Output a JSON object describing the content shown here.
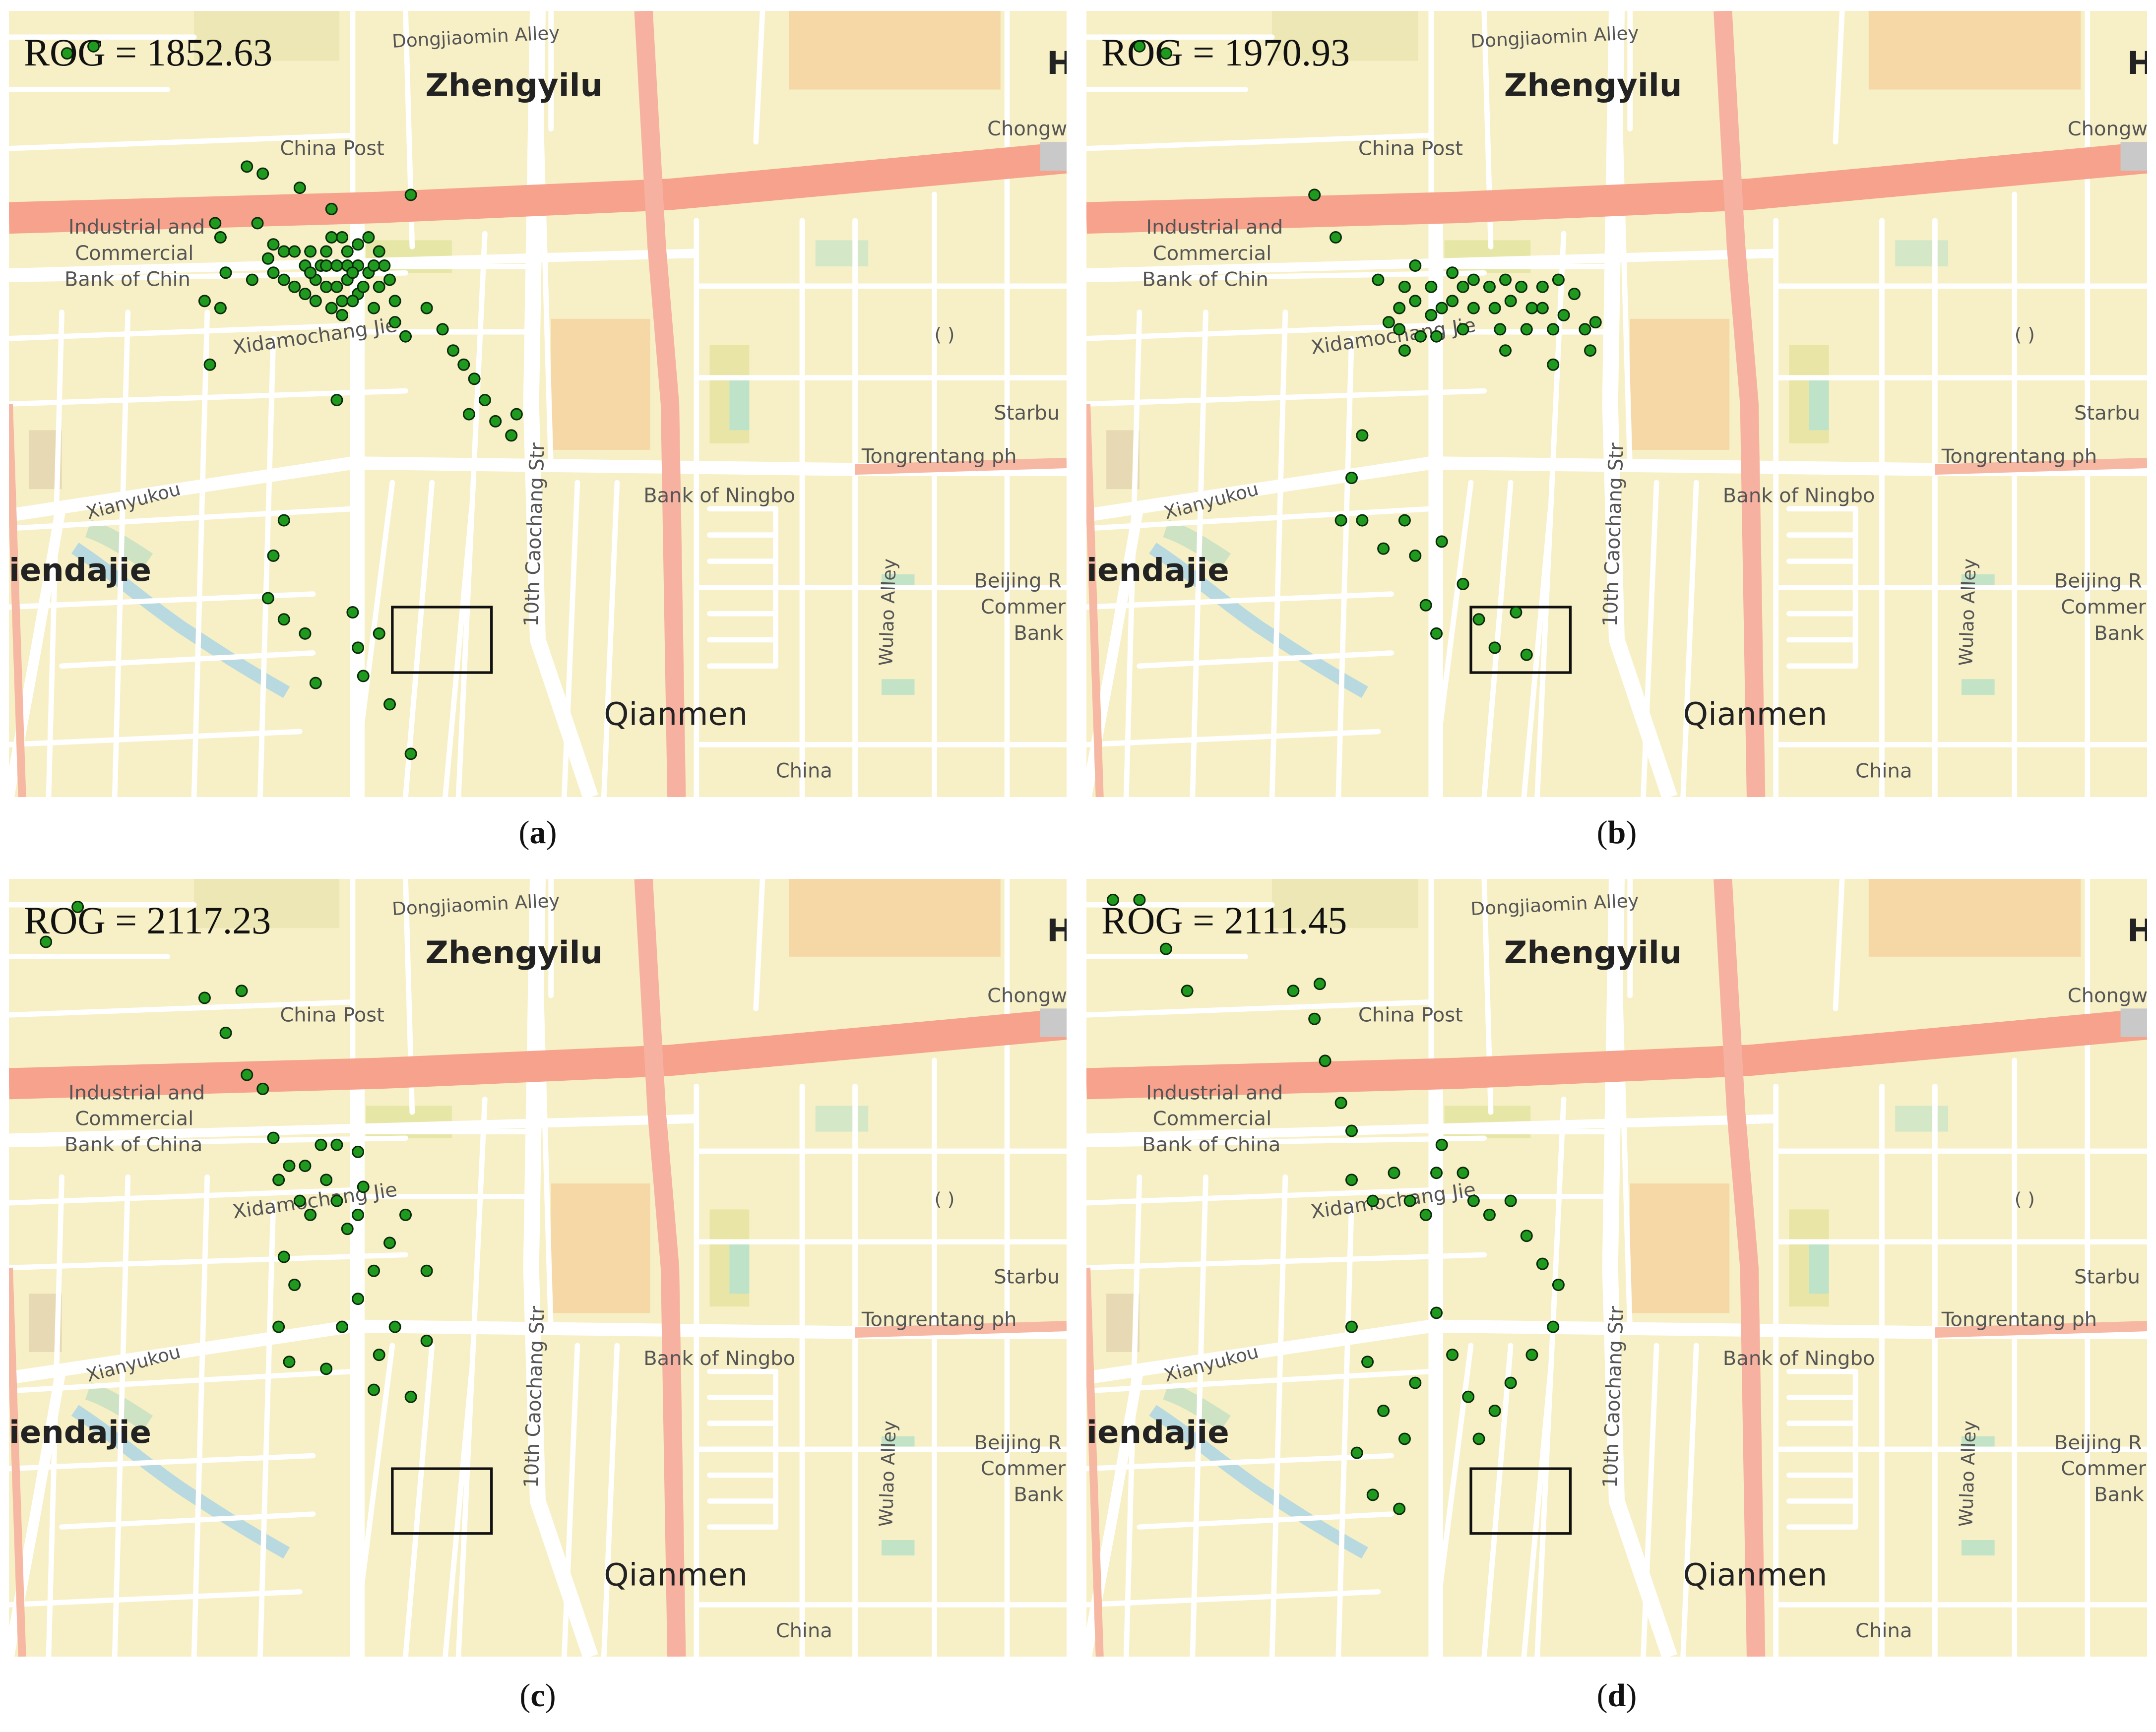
{
  "figure": {
    "panels": [
      {
        "caption_letter": "a",
        "rog": "ROG = 1852.63",
        "points": [
          [
            0.16,
            0.45
          ],
          [
            0.11,
            0.46
          ],
          [
            0.45,
            0.62
          ],
          [
            0.62,
            0.95
          ],
          [
            0.76,
            0.66
          ],
          [
            0.61,
            0.68
          ],
          [
            0.55,
            0.65
          ],
          [
            0.48,
            0.63
          ],
          [
            0.47,
            0.7
          ],
          [
            0.46,
            0.78
          ],
          [
            0.39,
            0.7
          ],
          [
            0.4,
            0.72
          ],
          [
            0.41,
            0.77
          ],
          [
            0.4,
            0.82
          ],
          [
            0.37,
            0.81
          ],
          [
            0.38,
            0.9
          ],
          [
            0.56,
            0.76
          ],
          [
            0.58,
            0.78
          ],
          [
            0.6,
            0.79
          ],
          [
            0.59,
            0.76
          ],
          [
            0.57,
            0.74
          ],
          [
            0.57,
            0.77
          ],
          [
            0.6,
            0.76
          ],
          [
            0.62,
            0.79
          ],
          [
            0.63,
            0.81
          ],
          [
            0.64,
            0.78
          ],
          [
            0.66,
            0.8
          ],
          [
            0.72,
            0.78
          ],
          [
            0.7,
            0.79
          ],
          [
            0.66,
            0.76
          ],
          [
            0.68,
            0.77
          ],
          [
            0.73,
            0.81
          ],
          [
            0.71,
            0.76
          ],
          [
            0.64,
            0.76
          ],
          [
            0.65,
            0.77
          ],
          [
            0.67,
            0.79
          ],
          [
            0.69,
            0.76
          ],
          [
            0.62,
            0.76
          ],
          [
            0.6,
            0.74
          ],
          [
            0.66,
            0.73
          ],
          [
            0.68,
            0.72
          ],
          [
            0.7,
            0.74
          ],
          [
            0.63,
            0.72
          ],
          [
            0.61,
            0.72
          ],
          [
            0.64,
            0.74
          ],
          [
            0.54,
            0.79
          ],
          [
            0.52,
            0.78
          ],
          [
            0.5,
            0.77
          ],
          [
            0.49,
            0.75
          ],
          [
            0.5,
            0.73
          ],
          [
            0.52,
            0.74
          ],
          [
            0.54,
            0.74
          ],
          [
            0.56,
            0.8
          ],
          [
            0.58,
            0.81
          ],
          [
            0.61,
            0.82
          ],
          [
            0.63,
            0.83
          ],
          [
            0.65,
            0.81
          ],
          [
            0.69,
            0.82
          ],
          [
            0.73,
            0.84
          ],
          [
            0.75,
            0.86
          ],
          [
            0.79,
            0.82
          ],
          [
            0.82,
            0.85
          ],
          [
            0.84,
            0.88
          ],
          [
            0.88,
            0.92
          ],
          [
            0.9,
            0.95
          ],
          [
            0.87,
            0.97
          ],
          [
            0.86,
            0.9
          ],
          [
            0.92,
            0.98
          ],
          [
            0.95,
            1.0
          ],
          [
            0.96,
            0.97
          ],
          [
            0.52,
            1.12
          ],
          [
            0.5,
            1.17
          ],
          [
            0.49,
            1.23
          ],
          [
            0.52,
            1.26
          ],
          [
            0.56,
            1.28
          ],
          [
            0.58,
            1.35
          ],
          [
            0.65,
            1.25
          ],
          [
            0.66,
            1.3
          ],
          [
            0.7,
            1.28
          ],
          [
            0.67,
            1.34
          ],
          [
            0.72,
            1.38
          ],
          [
            0.76,
            1.45
          ]
        ]
      },
      {
        "caption_letter": "b",
        "rog": "ROG = 1970.93",
        "points": [
          [
            0.1,
            0.45
          ],
          [
            0.15,
            0.46
          ],
          [
            0.43,
            0.66
          ],
          [
            0.47,
            0.72
          ],
          [
            0.55,
            0.78
          ],
          [
            0.6,
            0.79
          ],
          [
            0.62,
            0.76
          ],
          [
            0.62,
            0.81
          ],
          [
            0.59,
            0.82
          ],
          [
            0.57,
            0.84
          ],
          [
            0.59,
            0.85
          ],
          [
            0.6,
            0.88
          ],
          [
            0.63,
            0.86
          ],
          [
            0.65,
            0.83
          ],
          [
            0.67,
            0.82
          ],
          [
            0.65,
            0.79
          ],
          [
            0.66,
            0.86
          ],
          [
            0.71,
            0.85
          ],
          [
            0.73,
            0.82
          ],
          [
            0.71,
            0.79
          ],
          [
            0.69,
            0.77
          ],
          [
            0.69,
            0.81
          ],
          [
            0.73,
            0.78
          ],
          [
            0.76,
            0.79
          ],
          [
            0.77,
            0.82
          ],
          [
            0.78,
            0.85
          ],
          [
            0.79,
            0.78
          ],
          [
            0.79,
            0.88
          ],
          [
            0.8,
            0.81
          ],
          [
            0.82,
            0.79
          ],
          [
            0.84,
            0.82
          ],
          [
            0.83,
            0.85
          ],
          [
            0.86,
            0.82
          ],
          [
            0.88,
            0.85
          ],
          [
            0.86,
            0.79
          ],
          [
            0.89,
            0.78
          ],
          [
            0.92,
            0.8
          ],
          [
            0.9,
            0.83
          ],
          [
            0.94,
            0.85
          ],
          [
            0.95,
            0.88
          ],
          [
            0.96,
            0.84
          ],
          [
            0.88,
            0.9
          ],
          [
            0.52,
            1.0
          ],
          [
            0.5,
            1.06
          ],
          [
            0.48,
            1.12
          ],
          [
            0.52,
            1.12
          ],
          [
            0.56,
            1.16
          ],
          [
            0.6,
            1.12
          ],
          [
            0.62,
            1.17
          ],
          [
            0.64,
            1.24
          ],
          [
            0.67,
            1.15
          ],
          [
            0.71,
            1.21
          ],
          [
            0.66,
            1.28
          ],
          [
            0.74,
            1.26
          ],
          [
            0.77,
            1.3
          ],
          [
            0.81,
            1.25
          ],
          [
            0.83,
            1.31
          ]
        ]
      },
      {
        "caption_letter": "c",
        "rog": "ROG = 2117.23",
        "points": [
          [
            0.07,
            0.49
          ],
          [
            0.13,
            0.44
          ],
          [
            0.37,
            0.57
          ],
          [
            0.41,
            0.62
          ],
          [
            0.44,
            0.56
          ],
          [
            0.45,
            0.68
          ],
          [
            0.48,
            0.7
          ],
          [
            0.5,
            0.77
          ],
          [
            0.51,
            0.83
          ],
          [
            0.53,
            0.81
          ],
          [
            0.55,
            0.86
          ],
          [
            0.57,
            0.88
          ],
          [
            0.6,
            0.83
          ],
          [
            0.62,
            0.86
          ],
          [
            0.64,
            0.9
          ],
          [
            0.66,
            0.88
          ],
          [
            0.67,
            0.84
          ],
          [
            0.66,
            0.79
          ],
          [
            0.62,
            0.78
          ],
          [
            0.59,
            0.78
          ],
          [
            0.56,
            0.81
          ],
          [
            0.52,
            0.94
          ],
          [
            0.54,
            0.98
          ],
          [
            0.51,
            1.04
          ],
          [
            0.53,
            1.09
          ],
          [
            0.6,
            1.1
          ],
          [
            0.63,
            1.04
          ],
          [
            0.66,
            1.0
          ],
          [
            0.69,
            0.96
          ],
          [
            0.72,
            0.92
          ],
          [
            0.75,
            0.88
          ],
          [
            0.73,
            1.04
          ],
          [
            0.7,
            1.08
          ],
          [
            0.69,
            1.13
          ],
          [
            0.76,
            1.14
          ],
          [
            0.79,
            1.06
          ],
          [
            0.79,
            0.96
          ]
        ]
      },
      {
        "caption_letter": "d",
        "rog": "ROG = 2111.45",
        "points": [
          [
            0.05,
            0.43
          ],
          [
            0.1,
            0.43
          ],
          [
            0.15,
            0.5
          ],
          [
            0.19,
            0.56
          ],
          [
            0.39,
            0.56
          ],
          [
            0.43,
            0.6
          ],
          [
            0.44,
            0.55
          ],
          [
            0.45,
            0.66
          ],
          [
            0.48,
            0.72
          ],
          [
            0.5,
            0.76
          ],
          [
            0.5,
            0.83
          ],
          [
            0.54,
            0.86
          ],
          [
            0.58,
            0.82
          ],
          [
            0.61,
            0.86
          ],
          [
            0.64,
            0.88
          ],
          [
            0.66,
            0.82
          ],
          [
            0.67,
            0.78
          ],
          [
            0.71,
            0.82
          ],
          [
            0.73,
            0.86
          ],
          [
            0.76,
            0.88
          ],
          [
            0.8,
            0.86
          ],
          [
            0.83,
            0.91
          ],
          [
            0.86,
            0.95
          ],
          [
            0.89,
            0.98
          ],
          [
            0.88,
            1.04
          ],
          [
            0.84,
            1.08
          ],
          [
            0.8,
            1.12
          ],
          [
            0.77,
            1.16
          ],
          [
            0.74,
            1.2
          ],
          [
            0.72,
            1.14
          ],
          [
            0.69,
            1.08
          ],
          [
            0.66,
            1.02
          ],
          [
            0.62,
            1.12
          ],
          [
            0.6,
            1.2
          ],
          [
            0.56,
            1.16
          ],
          [
            0.53,
            1.09
          ],
          [
            0.5,
            1.04
          ],
          [
            0.51,
            1.22
          ],
          [
            0.54,
            1.28
          ],
          [
            0.59,
            1.3
          ]
        ]
      }
    ]
  },
  "map_labels": {
    "street_top": "Dongjiaomin Alley",
    "district": "Zhengyilu",
    "edge_h": "H",
    "china_post": "China Post",
    "chongwen_a": "Chongw",
    "icbc_1": "Industrial and",
    "icbc_2": "Commercial",
    "icbc_3_a": "Bank of Chin",
    "icbc_3_c": "Bank of China",
    "xidamochang": "Xidamochang Jie",
    "parens": "( )",
    "starbu": "Starbu",
    "tongrentang": "Tongrentang ph",
    "xianyukou": "Xianyukou",
    "bank_ningbo": "Bank of Ningbo",
    "caochang": "10th Caochang Str",
    "wulao": "Wulao Alley",
    "dajie": "iendajie",
    "beijing_1": "Beijing R",
    "beijing_2": "Commer",
    "beijing_3": "Bank",
    "qianmen": "Qianmen",
    "china_bottom": "China"
  }
}
